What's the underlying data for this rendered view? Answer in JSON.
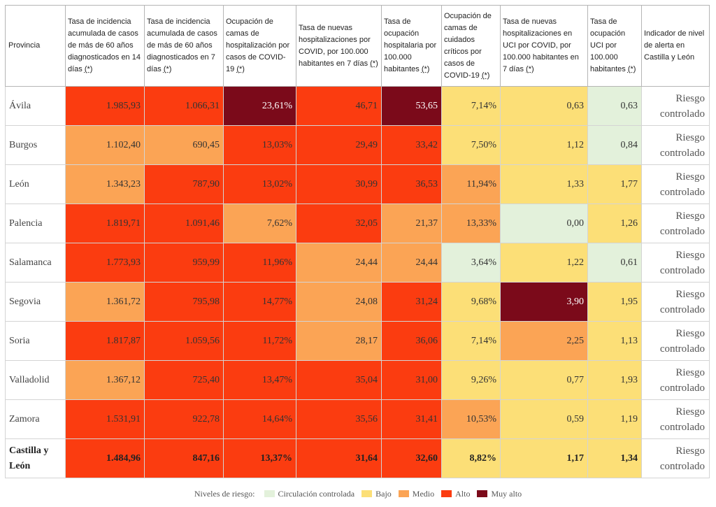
{
  "colors": {
    "circulacion": "#e3f1db",
    "bajo": "#fcdf77",
    "medio": "#fba455",
    "alto": "#fb3c10",
    "muy_alto": "#7b0a1a"
  },
  "table": {
    "headers": [
      {
        "label": "Provincia",
        "note": ""
      },
      {
        "label": "Tasa de incidencia acumulada de casos de más de 60 años diagnosticados en 14 días",
        "note": "(*)"
      },
      {
        "label": "Tasa de incidencia acumulada de casos de más de 60 años diagnosticados en 7 días",
        "note": "(*)"
      },
      {
        "label": "Ocupación de camas de hospitalización por casos de COVID-19",
        "note": "(*)"
      },
      {
        "label": "Tasa de nuevas hospitalizaciones por COVID, por 100.000 habitantes en 7 días",
        "note": "(*)"
      },
      {
        "label": "Tasa de ocupación hospitalaria por 100.000 habitantes",
        "note": "(*)"
      },
      {
        "label": "Ocupación de camas de cuidados críticos por casos de COVID-19",
        "note": "(*)"
      },
      {
        "label": "Tasa de nuevas hospitalizaciones en UCI por COVID, por 100.000 habitantes en 7 días",
        "note": "(*)"
      },
      {
        "label": "Tasa de ocupación UCI por 100.000 habitantes",
        "note": "(*)"
      },
      {
        "label": "Indicador de nivel de alerta en Castilla y León",
        "note": ""
      }
    ],
    "rows": [
      {
        "provincia": "Ávila",
        "cells": [
          {
            "v": "1.985,93",
            "lvl": "alto"
          },
          {
            "v": "1.066,31",
            "lvl": "alto"
          },
          {
            "v": "23,61%",
            "lvl": "muy"
          },
          {
            "v": "46,71",
            "lvl": "alto"
          },
          {
            "v": "53,65",
            "lvl": "muy"
          },
          {
            "v": "7,14%",
            "lvl": "bajo"
          },
          {
            "v": "0,63",
            "lvl": "bajo"
          },
          {
            "v": "0,63",
            "lvl": "circ"
          }
        ],
        "alerta": "Riesgo controlado"
      },
      {
        "provincia": "Burgos",
        "cells": [
          {
            "v": "1.102,40",
            "lvl": "medio"
          },
          {
            "v": "690,45",
            "lvl": "medio"
          },
          {
            "v": "13,03%",
            "lvl": "alto"
          },
          {
            "v": "29,49",
            "lvl": "alto"
          },
          {
            "v": "33,42",
            "lvl": "alto"
          },
          {
            "v": "7,50%",
            "lvl": "bajo"
          },
          {
            "v": "1,12",
            "lvl": "bajo"
          },
          {
            "v": "0,84",
            "lvl": "circ"
          }
        ],
        "alerta": "Riesgo controlado"
      },
      {
        "provincia": "León",
        "cells": [
          {
            "v": "1.343,23",
            "lvl": "medio"
          },
          {
            "v": "787,90",
            "lvl": "alto"
          },
          {
            "v": "13,02%",
            "lvl": "alto"
          },
          {
            "v": "30,99",
            "lvl": "alto"
          },
          {
            "v": "36,53",
            "lvl": "alto"
          },
          {
            "v": "11,94%",
            "lvl": "medio"
          },
          {
            "v": "1,33",
            "lvl": "bajo"
          },
          {
            "v": "1,77",
            "lvl": "bajo"
          }
        ],
        "alerta": "Riesgo controlado"
      },
      {
        "provincia": "Palencia",
        "cells": [
          {
            "v": "1.819,71",
            "lvl": "alto"
          },
          {
            "v": "1.091,46",
            "lvl": "alto"
          },
          {
            "v": "7,62%",
            "lvl": "medio"
          },
          {
            "v": "32,05",
            "lvl": "alto"
          },
          {
            "v": "21,37",
            "lvl": "medio"
          },
          {
            "v": "13,33%",
            "lvl": "medio"
          },
          {
            "v": "0,00",
            "lvl": "circ"
          },
          {
            "v": "1,26",
            "lvl": "bajo"
          }
        ],
        "alerta": "Riesgo controlado"
      },
      {
        "provincia": "Salamanca",
        "cells": [
          {
            "v": "1.773,93",
            "lvl": "alto"
          },
          {
            "v": "959,99",
            "lvl": "alto"
          },
          {
            "v": "11,96%",
            "lvl": "alto"
          },
          {
            "v": "24,44",
            "lvl": "medio"
          },
          {
            "v": "24,44",
            "lvl": "medio"
          },
          {
            "v": "3,64%",
            "lvl": "circ"
          },
          {
            "v": "1,22",
            "lvl": "bajo"
          },
          {
            "v": "0,61",
            "lvl": "circ"
          }
        ],
        "alerta": "Riesgo controlado"
      },
      {
        "provincia": "Segovia",
        "cells": [
          {
            "v": "1.361,72",
            "lvl": "medio"
          },
          {
            "v": "795,98",
            "lvl": "alto"
          },
          {
            "v": "14,77%",
            "lvl": "alto"
          },
          {
            "v": "24,08",
            "lvl": "medio"
          },
          {
            "v": "31,24",
            "lvl": "alto"
          },
          {
            "v": "9,68%",
            "lvl": "bajo"
          },
          {
            "v": "3,90",
            "lvl": "muy"
          },
          {
            "v": "1,95",
            "lvl": "bajo"
          }
        ],
        "alerta": "Riesgo controlado"
      },
      {
        "provincia": "Soria",
        "cells": [
          {
            "v": "1.817,87",
            "lvl": "alto"
          },
          {
            "v": "1.059,56",
            "lvl": "alto"
          },
          {
            "v": "11,72%",
            "lvl": "alto"
          },
          {
            "v": "28,17",
            "lvl": "medio"
          },
          {
            "v": "36,06",
            "lvl": "alto"
          },
          {
            "v": "7,14%",
            "lvl": "bajo"
          },
          {
            "v": "2,25",
            "lvl": "medio"
          },
          {
            "v": "1,13",
            "lvl": "bajo"
          }
        ],
        "alerta": "Riesgo controlado"
      },
      {
        "provincia": "Valladolid",
        "cells": [
          {
            "v": "1.367,12",
            "lvl": "medio"
          },
          {
            "v": "725,40",
            "lvl": "alto"
          },
          {
            "v": "13,47%",
            "lvl": "alto"
          },
          {
            "v": "35,04",
            "lvl": "alto"
          },
          {
            "v": "31,00",
            "lvl": "alto"
          },
          {
            "v": "9,26%",
            "lvl": "bajo"
          },
          {
            "v": "0,77",
            "lvl": "bajo"
          },
          {
            "v": "1,93",
            "lvl": "bajo"
          }
        ],
        "alerta": "Riesgo controlado"
      },
      {
        "provincia": "Zamora",
        "cells": [
          {
            "v": "1.531,91",
            "lvl": "alto"
          },
          {
            "v": "922,78",
            "lvl": "alto"
          },
          {
            "v": "14,64%",
            "lvl": "alto"
          },
          {
            "v": "35,56",
            "lvl": "alto"
          },
          {
            "v": "31,41",
            "lvl": "alto"
          },
          {
            "v": "10,53%",
            "lvl": "medio"
          },
          {
            "v": "0,59",
            "lvl": "bajo"
          },
          {
            "v": "1,19",
            "lvl": "bajo"
          }
        ],
        "alerta": "Riesgo controlado"
      }
    ],
    "total": {
      "provincia": "Castilla y León",
      "cells": [
        {
          "v": "1.484,96",
          "lvl": "alto"
        },
        {
          "v": "847,16",
          "lvl": "alto"
        },
        {
          "v": "13,37%",
          "lvl": "alto"
        },
        {
          "v": "31,64",
          "lvl": "alto"
        },
        {
          "v": "32,60",
          "lvl": "alto"
        },
        {
          "v": "8,82%",
          "lvl": "bajo"
        },
        {
          "v": "1,17",
          "lvl": "bajo"
        },
        {
          "v": "1,34",
          "lvl": "bajo"
        }
      ],
      "alerta": "Riesgo controlado"
    }
  },
  "legend": {
    "title": "Niveles de riesgo:",
    "items": [
      {
        "label": "Circulación controlada",
        "lvl": "circ"
      },
      {
        "label": "Bajo",
        "lvl": "bajo"
      },
      {
        "label": "Medio",
        "lvl": "medio"
      },
      {
        "label": "Alto",
        "lvl": "alto"
      },
      {
        "label": "Muy alto",
        "lvl": "muy"
      }
    ]
  }
}
